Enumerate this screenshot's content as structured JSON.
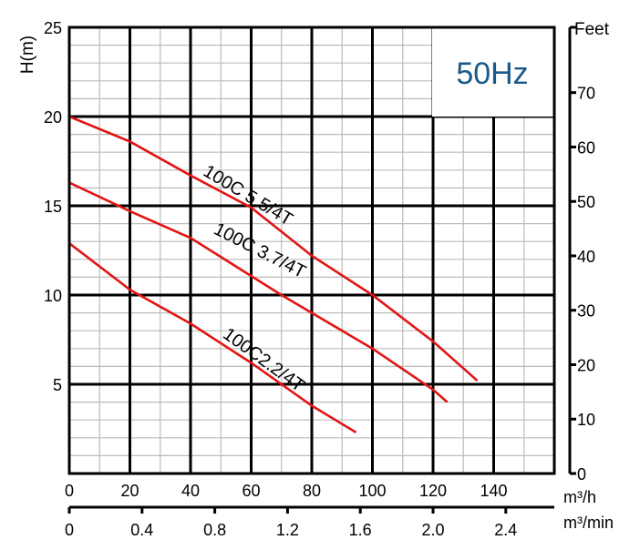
{
  "chart_data": {
    "type": "line",
    "title": "50Hz",
    "title_color": "#1a5a8a",
    "ylabel": "H(m)",
    "ylabel_right": "Feet",
    "xlabel": "m³/h",
    "xlabel_secondary": "m³/min",
    "xlim": [
      0,
      160
    ],
    "ylim": [
      0,
      25
    ],
    "ylim_right_feet": [
      0,
      82
    ],
    "xticks": [
      0,
      20,
      40,
      60,
      80,
      100,
      120,
      140
    ],
    "yticks": [
      5,
      10,
      15,
      20,
      25
    ],
    "yticks_right": [
      0,
      10,
      20,
      30,
      40,
      50,
      60,
      70
    ],
    "xticks_secondary": [
      "0",
      "0.4",
      "0.8",
      "1.2",
      "1.6",
      "2.0",
      "2.4"
    ],
    "grid": true,
    "series_color": "#e31414",
    "series": [
      {
        "name": "100C 5.5/4T",
        "x": [
          0,
          20,
          40,
          60,
          80,
          100,
          120,
          134.6
        ],
        "y": [
          20,
          18.6,
          16.7,
          14.9,
          12.2,
          10,
          7.4,
          5.2
        ]
      },
      {
        "name": "100C 3.7/4T",
        "x": [
          0,
          20,
          40,
          70,
          100,
          120,
          124.7
        ],
        "y": [
          16.3,
          14.7,
          13.2,
          10,
          7.0,
          4.7,
          4.0
        ]
      },
      {
        "name": "100C2.2/4T",
        "x": [
          0,
          20,
          40,
          60,
          80,
          94.6
        ],
        "y": [
          12.9,
          10.3,
          8.4,
          6.2,
          3.8,
          2.3
        ]
      }
    ]
  }
}
